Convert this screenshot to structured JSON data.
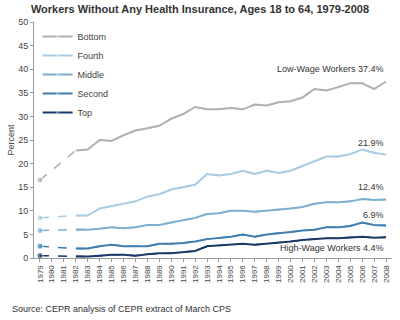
{
  "chart_data": {
    "type": "line",
    "title": "Workers Without Any Health Insurance, Ages 18 to 64, 1979-2008",
    "source": "Source: CEPR analysis of CEPR extract of March CPS",
    "x": [
      1979,
      1980,
      1981,
      1982,
      1983,
      1984,
      1985,
      1986,
      1987,
      1988,
      1989,
      1990,
      1991,
      1992,
      1993,
      1994,
      1995,
      1996,
      1997,
      1998,
      1999,
      2000,
      2001,
      2002,
      2003,
      2004,
      2005,
      2006,
      2007,
      2008
    ],
    "xlim": [
      1978.5,
      2008.5
    ],
    "xticks": [
      1979,
      1980,
      1981,
      1982,
      1983,
      1984,
      1985,
      1986,
      1987,
      1988,
      1989,
      1990,
      1991,
      1992,
      1993,
      1994,
      1995,
      1996,
      1997,
      1998,
      1999,
      2000,
      2001,
      2002,
      2003,
      2004,
      2005,
      2006,
      2007,
      2008
    ],
    "ylabel": "Percent",
    "ylim": [
      0,
      50
    ],
    "yticks": [
      0,
      5,
      10,
      15,
      20,
      25,
      30,
      35,
      40,
      45,
      50
    ],
    "grid": false,
    "legend": "upper left",
    "series": [
      {
        "name": "Bottom",
        "color": "#b2b2b2",
        "label": "Low-Wage Workers 37.4%",
        "values": [
          16.5,
          null,
          null,
          22.8,
          23,
          25,
          24.8,
          26,
          27,
          27.5,
          28,
          29.5,
          30.5,
          32,
          31.5,
          31.5,
          31.8,
          31.5,
          32.5,
          32.3,
          33,
          33.2,
          34,
          35.8,
          35.5,
          36.2,
          37,
          37,
          35.8,
          37.4
        ]
      },
      {
        "name": "Fourth",
        "color": "#a8cce2",
        "label": "21.9%",
        "values": [
          8.5,
          null,
          null,
          9,
          9,
          10.5,
          11,
          11.5,
          12,
          13,
          13.5,
          14.5,
          15,
          15.5,
          17.8,
          17.5,
          17.8,
          18.5,
          17.8,
          18.5,
          18,
          18.5,
          19.5,
          20.5,
          21.5,
          21.5,
          22,
          23,
          22.3,
          21.9
        ]
      },
      {
        "name": "Middle",
        "color": "#7db0cf",
        "label": "12.4%",
        "values": [
          5.8,
          null,
          null,
          6,
          6,
          6.2,
          6.5,
          6.3,
          6.5,
          7,
          7,
          7.5,
          8,
          8.5,
          9.3,
          9.5,
          10,
          10,
          9.8,
          10,
          10.3,
          10.5,
          10.8,
          11.5,
          11.8,
          11.8,
          12,
          12.5,
          12.3,
          12.4
        ]
      },
      {
        "name": "Second",
        "color": "#3f7fb0",
        "label": "6.9%",
        "values": [
          2.5,
          null,
          null,
          2,
          2,
          2.5,
          2.8,
          2.5,
          2.5,
          2.5,
          3,
          3,
          3.2,
          3.5,
          4,
          4.2,
          4.5,
          5,
          4.5,
          5,
          5.2,
          5.5,
          5.8,
          6,
          6.5,
          6.5,
          6.8,
          7.5,
          7,
          6.9
        ]
      },
      {
        "name": "Top",
        "color": "#173a66",
        "label": "High-Wage Workers 4.4%",
        "values": [
          0.5,
          null,
          null,
          0.3,
          0.3,
          0.5,
          0.7,
          0.7,
          0.5,
          0.8,
          1,
          1,
          1.2,
          1.5,
          2.5,
          2.7,
          2.8,
          3,
          2.8,
          3,
          3.2,
          3.5,
          3.8,
          4,
          4.2,
          4.2,
          4.3,
          4.5,
          4.3,
          4.4
        ]
      }
    ]
  }
}
